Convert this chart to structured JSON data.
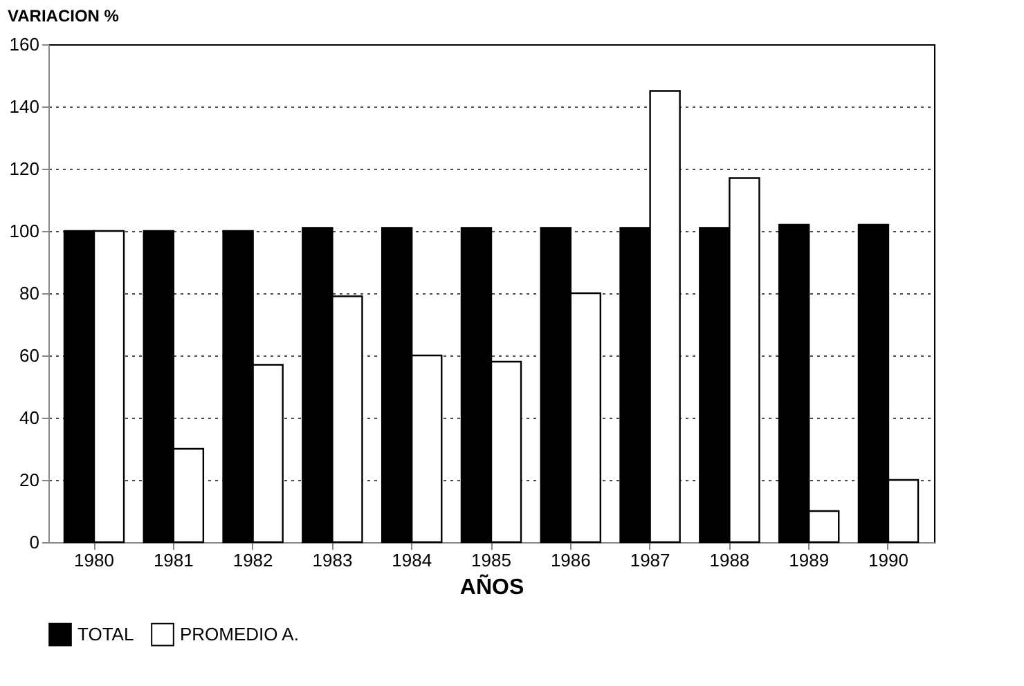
{
  "chart_data": {
    "type": "bar",
    "xlabel": "AÑOS",
    "ylabel": "VARIACION %",
    "categories": [
      "1980",
      "1981",
      "1982",
      "1983",
      "1984",
      "1985",
      "1986",
      "1987",
      "1988",
      "1989",
      "1990"
    ],
    "series": [
      {
        "name": "TOTAL",
        "color": "#000000",
        "values": [
          100,
          100,
          100,
          101,
          101,
          101,
          101,
          101,
          101,
          102,
          102
        ]
      },
      {
        "name": "PROMEDIO A.",
        "color": "#ffffff",
        "values": [
          100,
          30,
          57,
          79,
          60,
          58,
          80,
          145,
          117,
          10,
          20
        ]
      }
    ],
    "ylim": [
      0,
      160
    ],
    "yticks": [
      0,
      20,
      40,
      60,
      80,
      100,
      120,
      140,
      160
    ],
    "grid": "y",
    "legend": "bottom"
  }
}
